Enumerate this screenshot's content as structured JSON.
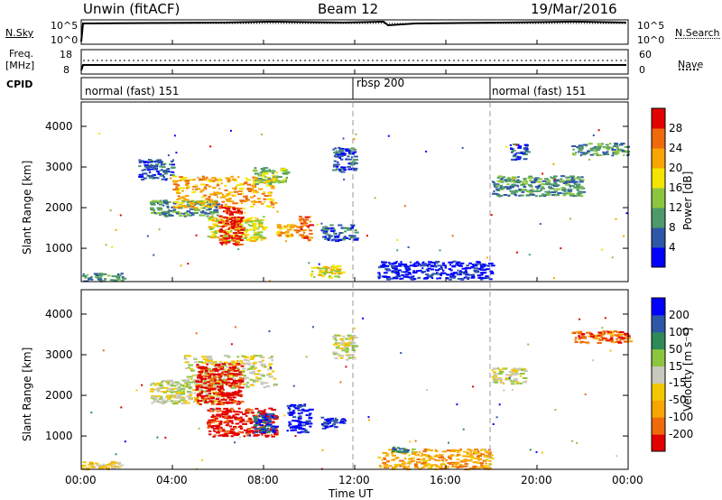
{
  "header": {
    "station": "Unwin (fitACF)",
    "beam": "Beam 12",
    "date": "19/Mar/2016"
  },
  "strips": {
    "nsky_label": "N.Sky",
    "nsky_ticks": [
      "10^5",
      "10^0"
    ],
    "nsearch_label": "N.Search",
    "nsearch_ticks": [
      "10^5",
      "10^0"
    ],
    "freq_label_1": "Freq.",
    "freq_label_2": "[MHz]",
    "freq_ticks": [
      "18",
      "8"
    ],
    "nave_label": "Nave",
    "nave_ticks": [
      "60",
      "0"
    ],
    "cpid_label": "CPID",
    "cpid_segments": [
      {
        "label": "normal (fast) 151",
        "start_hour": 0,
        "end_hour": 12
      },
      {
        "label": "rbsp 200",
        "start_hour": 12,
        "end_hour": 18
      },
      {
        "label": "normal (fast) 151",
        "start_hour": 18,
        "end_hour": 24
      }
    ]
  },
  "xaxis": {
    "label": "Time UT",
    "ticks": [
      "00:00",
      "04:00",
      "08:00",
      "12:00",
      "16:00",
      "20:00",
      "00:00"
    ]
  },
  "chart_data": [
    {
      "type": "heatmap",
      "panel": "power",
      "ylabel": "Slant Range [km]",
      "yticks": [
        1000,
        2000,
        3000,
        4000
      ],
      "ylim": [
        180,
        4600
      ],
      "xlim_hours": [
        0,
        24
      ],
      "colorbar": {
        "label": "Power [dB]",
        "ticks": [
          "28",
          "24",
          "20",
          "16",
          "12",
          "8",
          "4"
        ],
        "colors": [
          "#0000ff",
          "#2e57a8",
          "#4f9a6a",
          "#8cc63f",
          "#f3e500",
          "#f7a500",
          "#ee6a0b",
          "#e20000"
        ]
      },
      "echo_regions": [
        {
          "t": [
            0.0,
            1.8
          ],
          "r": [
            200,
            400
          ],
          "level": 2
        },
        {
          "t": [
            2.5,
            4.0
          ],
          "r": [
            2700,
            3200
          ],
          "level": 1
        },
        {
          "t": [
            3.0,
            6.0
          ],
          "r": [
            1800,
            2200
          ],
          "level": 2
        },
        {
          "t": [
            4.0,
            8.5
          ],
          "r": [
            2000,
            2800
          ],
          "level": 5
        },
        {
          "t": [
            5.5,
            8.0
          ],
          "r": [
            1200,
            1800
          ],
          "level": 4
        },
        {
          "t": [
            6.0,
            7.0
          ],
          "r": [
            1100,
            2100
          ],
          "level": 7
        },
        {
          "t": [
            7.5,
            9.0
          ],
          "r": [
            2600,
            3000
          ],
          "level": 3
        },
        {
          "t": [
            8.5,
            9.5
          ],
          "r": [
            1300,
            1600
          ],
          "level": 5
        },
        {
          "t": [
            9.5,
            10.0
          ],
          "r": [
            1200,
            1800
          ],
          "level": 6
        },
        {
          "t": [
            10.0,
            11.5
          ],
          "r": [
            300,
            600
          ],
          "level": 4
        },
        {
          "t": [
            10.5,
            12.0
          ],
          "r": [
            1200,
            1600
          ],
          "level": 1
        },
        {
          "t": [
            11.0,
            12.0
          ],
          "r": [
            2900,
            3500
          ],
          "level": 1
        },
        {
          "t": [
            13.0,
            18.0
          ],
          "r": [
            250,
            700
          ],
          "level": 0
        },
        {
          "t": [
            18.0,
            22.0
          ],
          "r": [
            2300,
            2800
          ],
          "level": 2
        },
        {
          "t": [
            18.8,
            19.5
          ],
          "r": [
            3200,
            3600
          ],
          "level": 1
        },
        {
          "t": [
            21.5,
            24.0
          ],
          "r": [
            3300,
            3600
          ],
          "level": 2
        }
      ]
    },
    {
      "type": "heatmap",
      "panel": "velocity",
      "ylabel": "Slant Range [km]",
      "yticks": [
        1000,
        2000,
        3000,
        4000
      ],
      "ylim": [
        180,
        4600
      ],
      "xlim_hours": [
        0,
        24
      ],
      "colorbar": {
        "label": "Velocity [m s⁻¹]",
        "ticks": [
          "200",
          "100",
          "50",
          "15",
          "-15",
          "-50",
          "-100",
          "-200"
        ],
        "colors": [
          "#e20000",
          "#ee6a0b",
          "#f7a500",
          "#f3c700",
          "#c8c8be",
          "#8cc63f",
          "#2e8b57",
          "#2e57a8",
          "#0000ff"
        ]
      },
      "echo_regions": [
        {
          "t": [
            0.0,
            1.8
          ],
          "r": [
            200,
            400
          ],
          "level": 3
        },
        {
          "t": [
            3.0,
            6.0
          ],
          "r": [
            1800,
            2400
          ],
          "level": 4
        },
        {
          "t": [
            4.5,
            8.5
          ],
          "r": [
            2200,
            3000
          ],
          "level": 4
        },
        {
          "t": [
            5.0,
            7.0
          ],
          "r": [
            1800,
            2800
          ],
          "level": 0
        },
        {
          "t": [
            5.5,
            8.5
          ],
          "r": [
            1000,
            1700
          ],
          "level": 0
        },
        {
          "t": [
            7.5,
            8.5
          ],
          "r": [
            1100,
            1600
          ],
          "level": 7
        },
        {
          "t": [
            9.0,
            10.0
          ],
          "r": [
            1100,
            1800
          ],
          "level": 8
        },
        {
          "t": [
            10.5,
            11.5
          ],
          "r": [
            1200,
            1500
          ],
          "level": 8
        },
        {
          "t": [
            11.0,
            12.0
          ],
          "r": [
            2900,
            3500
          ],
          "level": 4
        },
        {
          "t": [
            13.0,
            18.0
          ],
          "r": [
            200,
            700
          ],
          "level": 2
        },
        {
          "t": [
            13.5,
            14.5
          ],
          "r": [
            600,
            750
          ],
          "level": 6
        },
        {
          "t": [
            18.0,
            19.5
          ],
          "r": [
            2300,
            2700
          ],
          "level": 4
        },
        {
          "t": [
            21.5,
            24.0
          ],
          "r": [
            3300,
            3600
          ],
          "level": 1
        }
      ]
    }
  ]
}
